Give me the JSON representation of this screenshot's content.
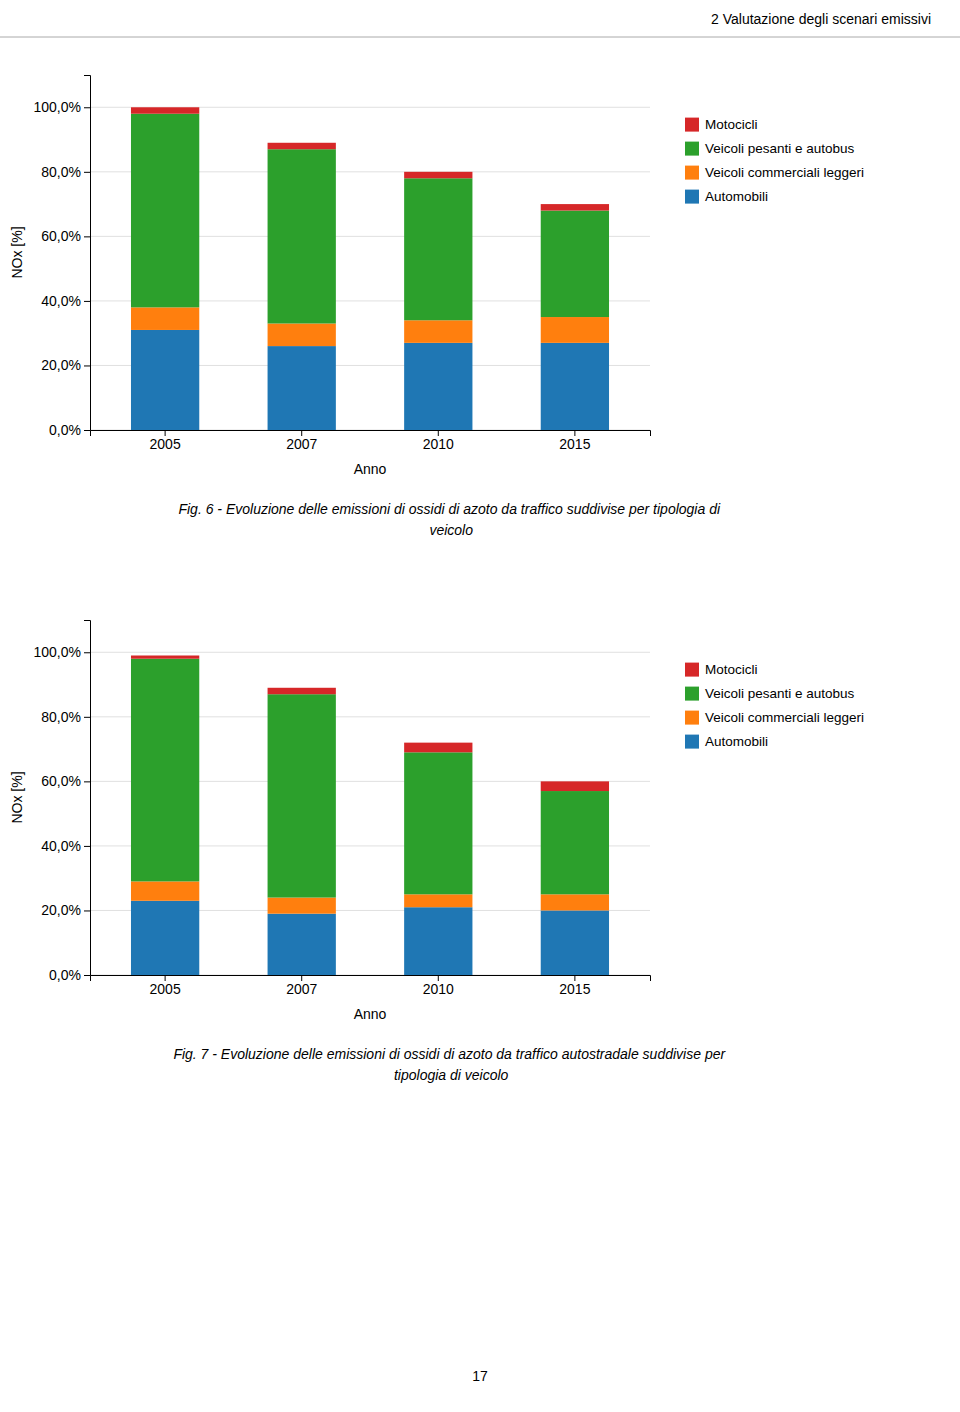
{
  "header": "2 Valutazione degli scenari emissivi",
  "page_number": "17",
  "chart_data": [
    {
      "type": "bar",
      "stacked": true,
      "title": "Fig. 6 - Evoluzione delle emissioni di ossidi di azoto da traffico suddivise per tipologia di\nveicolo",
      "x_label": "Anno",
      "y_label": "NOx [%]",
      "categories": [
        "2005",
        "2007",
        "2010",
        "2015"
      ],
      "series": [
        {
          "name": "Automobili",
          "values": [
            31.0,
            26.0,
            27.0,
            27.0
          ]
        },
        {
          "name": "Veicoli commerciali leggeri",
          "values": [
            7.0,
            7.0,
            7.0,
            8.0
          ]
        },
        {
          "name": "Veicoli pesanti e autobus",
          "values": [
            60.0,
            54.0,
            44.0,
            33.0
          ]
        },
        {
          "name": "Motocicli",
          "values": [
            2.0,
            2.0,
            2.0,
            2.0
          ]
        }
      ],
      "ylim": [
        0,
        110
      ],
      "yticks": [
        {
          "value": 0,
          "label": "0,0%"
        },
        {
          "value": 20,
          "label": "20,0%"
        },
        {
          "value": 40,
          "label": "40,0%"
        },
        {
          "value": 60,
          "label": "60,0%"
        },
        {
          "value": 80,
          "label": "80,0%"
        },
        {
          "value": 100,
          "label": "100,0%"
        }
      ],
      "grid": true,
      "legend": "right"
    },
    {
      "type": "bar",
      "stacked": true,
      "title": "Fig. 7 - Evoluzione delle emissioni di ossidi di azoto da traffico autostradale suddivise per\ntipologia di veicolo",
      "x_label": "Anno",
      "y_label": "NOx [%]",
      "categories": [
        "2005",
        "2007",
        "2010",
        "2015"
      ],
      "series": [
        {
          "name": "Automobili",
          "values": [
            23.0,
            19.0,
            21.0,
            20.0
          ]
        },
        {
          "name": "Veicoli commerciali leggeri",
          "values": [
            6.0,
            5.0,
            4.0,
            5.0
          ]
        },
        {
          "name": "Veicoli pesanti e autobus",
          "values": [
            69.0,
            63.0,
            44.0,
            32.0
          ]
        },
        {
          "name": "Motocicli",
          "values": [
            1.0,
            2.0,
            3.0,
            3.0
          ]
        }
      ],
      "ylim": [
        0,
        110
      ],
      "yticks": [
        {
          "value": 0,
          "label": "0,0%"
        },
        {
          "value": 20,
          "label": "20,0%"
        },
        {
          "value": 40,
          "label": "40,0%"
        },
        {
          "value": 60,
          "label": "60,0%"
        },
        {
          "value": 80,
          "label": "80,0%"
        },
        {
          "value": 100,
          "label": "100,0%"
        }
      ],
      "grid": true,
      "legend": "right"
    }
  ]
}
